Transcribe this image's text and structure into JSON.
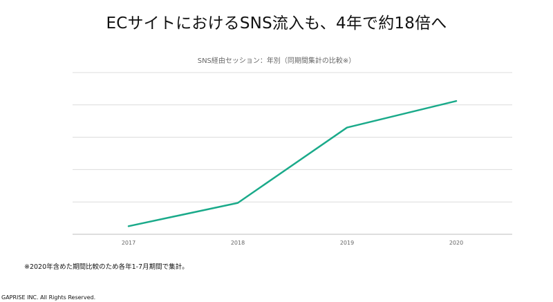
{
  "headline": "ECサイトにおけるSNS流入も、4年で約18倍へ",
  "footnote": "※2020年含めた期間比較のため各年1-7月期間で集計。",
  "copyright": "GAPRISE INC. All Rights Reserved.",
  "colors": {
    "line": "#1aaa8a",
    "grid": "#dcdcdc",
    "axis": "#bdbdbd",
    "tick_label": "#666666"
  },
  "chart_data": {
    "type": "line",
    "title": "SNS経由セッション：年別（同期間集計の比較※）",
    "xlabel": "",
    "ylabel": "",
    "categories": [
      "2017",
      "2018",
      "2019",
      "2020"
    ],
    "series": [
      {
        "values": [
          0.25,
          0.97,
          3.3,
          4.12
        ]
      }
    ],
    "ylim": [
      0,
      5
    ],
    "y_tick_labels_shown": false,
    "grid": true,
    "legend": "none"
  }
}
